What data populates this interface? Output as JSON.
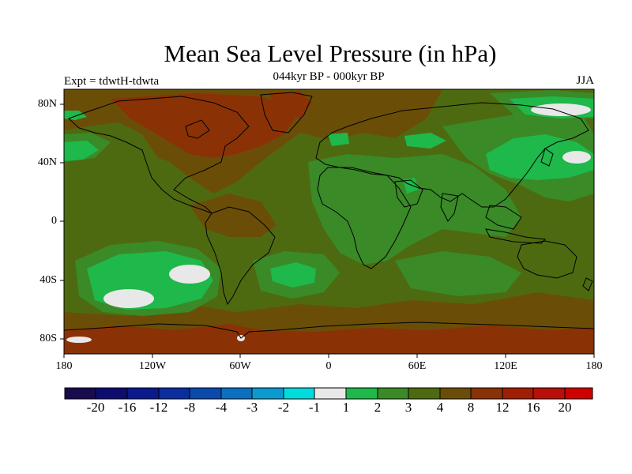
{
  "header": {
    "title": "Mean Sea Level Pressure (in hPa)",
    "subtitle": "044kyr BP - 000kyr BP",
    "left_label": "Expt = tdwtH-tdwta",
    "right_label": "JJA"
  },
  "map": {
    "projection": "cylindrical-equidistant",
    "lon_range": [
      -180,
      180
    ],
    "lat_range": [
      -90,
      90
    ],
    "lat_ticks": [
      {
        "label": "80N",
        "lat": 80
      },
      {
        "label": "40N",
        "lat": 40
      },
      {
        "label": "0",
        "lat": 0
      },
      {
        "label": "40S",
        "lat": -40
      },
      {
        "label": "80S",
        "lat": -80
      }
    ],
    "lon_ticks": [
      {
        "label": "180",
        "lon": -180
      },
      {
        "label": "120W",
        "lon": -120
      },
      {
        "label": "60W",
        "lon": -60
      },
      {
        "label": "0",
        "lon": 0
      },
      {
        "label": "60E",
        "lon": 60
      },
      {
        "label": "120E",
        "lon": 120
      },
      {
        "label": "180",
        "lon": 180
      }
    ],
    "background_class": "3 to 4"
  },
  "colorbar": {
    "colors": [
      "#1a0a50",
      "#0d0d70",
      "#0a1a8c",
      "#0a2e9e",
      "#0a4aaa",
      "#0a70c0",
      "#0a9ad0",
      "#00dcdc",
      "#e8e8e8",
      "#1fb84a",
      "#3a8a28",
      "#4e6a10",
      "#6a4e08",
      "#8a3206",
      "#a01e04",
      "#b81008",
      "#d00000"
    ],
    "labels": [
      "-20",
      "-16",
      "-12",
      "-8",
      "-4",
      "-3",
      "-2",
      "-1",
      "1",
      "2",
      "3",
      "4",
      "8",
      "12",
      "16",
      "20"
    ]
  }
}
